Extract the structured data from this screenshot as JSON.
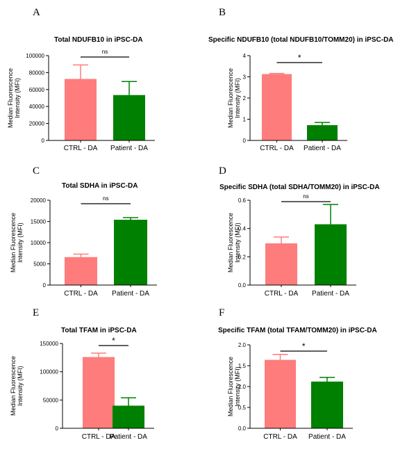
{
  "chart_data": [
    {
      "panel": "A",
      "type": "bar",
      "title": "Total NDUFB10 in iPSC-DA",
      "ylabel": "Median Fluorescence Intensity (MFI)",
      "categories": [
        "CTRL - DA",
        "Patient - DA"
      ],
      "values": [
        72500,
        53500
      ],
      "error_upper": [
        89000,
        69500
      ],
      "colors": [
        "#ff7c7c",
        "#008000"
      ],
      "ylim": [
        0,
        100000
      ],
      "yticks": [
        0,
        20000,
        40000,
        60000,
        80000,
        100000
      ],
      "significance": "ns"
    },
    {
      "panel": "B",
      "type": "bar",
      "title": "Specific NDUFB10 (total NDUFB10/TOMM20) in iPSC-DA",
      "ylabel": "Median Fluorescence Intensity (MFI)",
      "categories": [
        "CTRL - DA",
        "Patient - DA"
      ],
      "values": [
        3.13,
        0.72
      ],
      "error_upper": [
        3.16,
        0.85
      ],
      "colors": [
        "#ff7c7c",
        "#008000"
      ],
      "ylim": [
        0,
        4
      ],
      "yticks": [
        0,
        1,
        2,
        3,
        4
      ],
      "significance": "*"
    },
    {
      "panel": "C",
      "type": "bar",
      "title": "Total SDHA in iPSC-DA",
      "ylabel": "Median Fluorescence Intensity (MFI)",
      "categories": [
        "CTRL - DA",
        "Patient - DA"
      ],
      "values": [
        6600,
        15400
      ],
      "error_upper": [
        7300,
        15900
      ],
      "colors": [
        "#ff7c7c",
        "#008000"
      ],
      "ylim": [
        0,
        20000
      ],
      "yticks": [
        0,
        5000,
        10000,
        15000,
        20000
      ],
      "significance": "ns"
    },
    {
      "panel": "D",
      "type": "bar",
      "title": "Specific SDHA (total SDHA/TOMM20) in iPSC-DA",
      "ylabel": "Median Fluorescence Intensity (MFI)",
      "categories": [
        "CTRL - DA",
        "Patient - DA"
      ],
      "values": [
        0.295,
        0.43
      ],
      "error_upper": [
        0.34,
        0.57
      ],
      "colors": [
        "#ff7c7c",
        "#008000"
      ],
      "ylim": [
        0,
        0.6
      ],
      "yticks": [
        0.0,
        0.2,
        0.4,
        0.6
      ],
      "significance": "ns"
    },
    {
      "panel": "E",
      "type": "bar",
      "title": "Total TFAM in iPSC-DA",
      "ylabel": "Median Fluorescence Intensity (MFI)",
      "categories": [
        "CTRL - DA",
        "Patient - DA"
      ],
      "values": [
        126000,
        40000
      ],
      "error_upper": [
        133000,
        54000
      ],
      "colors": [
        "#ff7c7c",
        "#008000"
      ],
      "ylim": [
        0,
        150000
      ],
      "yticks": [
        0,
        50000,
        100000,
        150000
      ],
      "significance": "*"
    },
    {
      "panel": "F",
      "type": "bar",
      "title": "Specific TFAM (total TFAM/TOMM20)  in iPSC-DA",
      "ylabel": "Median Fluorescence Intensity (MFI)",
      "categories": [
        "CTRL - DA",
        "Patient - DA"
      ],
      "values": [
        1.64,
        1.12
      ],
      "error_upper": [
        1.77,
        1.22
      ],
      "colors": [
        "#ff7c7c",
        "#008000"
      ],
      "ylim": [
        0,
        2.0
      ],
      "yticks": [
        0.0,
        0.5,
        1.0,
        1.5,
        2.0
      ],
      "significance": "*"
    }
  ]
}
